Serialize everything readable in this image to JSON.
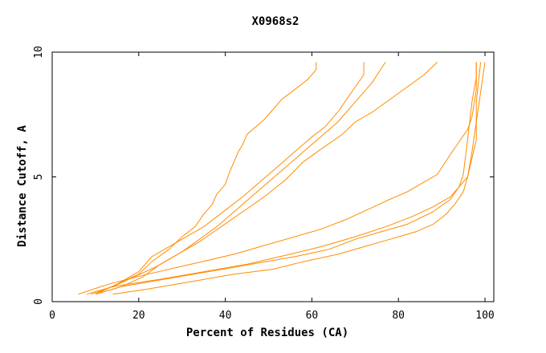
{
  "chart_data": {
    "type": "line",
    "title": "X0968s2",
    "xlabel": "Percent of Residues (CA)",
    "ylabel": "Distance Cutoff, A",
    "xlim": [
      0,
      100
    ],
    "ylim": [
      0,
      10
    ],
    "x_ticks": [
      "0",
      "20",
      "40",
      "60",
      "80",
      "100"
    ],
    "y_ticks": [
      "0",
      "5",
      "10"
    ],
    "grid": false,
    "line_color": "#ff8c00",
    "series": [
      {
        "x": [
          10,
          15,
          20,
          23,
          27,
          30,
          33,
          35,
          37,
          38,
          40,
          41,
          42,
          43,
          44,
          45,
          47,
          49,
          51,
          53,
          56,
          59,
          61,
          61
        ],
        "y": [
          0.3,
          0.7,
          1.1,
          1.6,
          2.1,
          2.6,
          3.0,
          3.5,
          3.9,
          4.3,
          4.7,
          5.2,
          5.6,
          6.0,
          6.3,
          6.7,
          7.0,
          7.3,
          7.7,
          8.1,
          8.5,
          8.9,
          9.3,
          9.6
        ]
      },
      {
        "x": [
          10,
          15,
          20,
          23,
          27,
          31,
          35,
          38,
          41,
          44,
          48,
          52,
          56,
          60,
          63,
          66,
          68,
          70,
          72,
          72
        ],
        "y": [
          0.3,
          0.7,
          1.2,
          1.8,
          2.2,
          2.6,
          3.0,
          3.4,
          3.8,
          4.2,
          4.8,
          5.4,
          6.0,
          6.6,
          7.0,
          7.6,
          8.1,
          8.6,
          9.1,
          9.6
        ]
      },
      {
        "x": [
          10,
          16,
          21,
          25,
          30,
          34,
          38,
          42,
          46,
          50,
          54,
          58,
          62,
          66,
          70,
          74,
          77
        ],
        "y": [
          0.3,
          0.6,
          1.0,
          1.5,
          2.0,
          2.5,
          3.0,
          3.6,
          4.2,
          4.8,
          5.4,
          6.0,
          6.6,
          7.2,
          8.0,
          8.8,
          9.6
        ]
      },
      {
        "x": [
          9,
          14,
          19,
          24,
          29,
          34,
          39,
          44,
          49,
          54,
          58,
          62,
          67,
          70,
          74,
          78,
          82,
          86,
          89
        ],
        "y": [
          0.3,
          0.6,
          1.0,
          1.4,
          1.9,
          2.4,
          3.0,
          3.6,
          4.2,
          4.9,
          5.6,
          6.1,
          6.7,
          7.2,
          7.6,
          8.1,
          8.6,
          9.1,
          9.6
        ]
      },
      {
        "x": [
          6,
          13,
          22,
          32,
          42,
          52,
          62,
          68,
          73,
          78,
          82,
          85,
          89,
          92,
          94,
          96,
          97,
          98,
          98
        ],
        "y": [
          0.3,
          0.7,
          1.1,
          1.5,
          1.9,
          2.4,
          2.9,
          3.3,
          3.7,
          4.1,
          4.4,
          4.7,
          5.1,
          5.9,
          6.4,
          6.9,
          7.4,
          8.5,
          9.6
        ]
      },
      {
        "x": [
          8,
          14,
          25,
          35,
          45,
          55,
          62,
          70,
          77,
          83,
          88,
          92,
          96,
          98,
          98,
          99
        ],
        "y": [
          0.3,
          0.6,
          0.9,
          1.2,
          1.5,
          1.9,
          2.2,
          2.6,
          3.0,
          3.4,
          3.8,
          4.2,
          5.0,
          6.5,
          8.0,
          9.6
        ]
      },
      {
        "x": [
          10,
          16,
          26,
          36,
          46,
          56,
          64,
          70,
          76,
          82,
          88,
          92,
          94,
          95,
          96,
          97,
          98,
          98
        ],
        "y": [
          0.3,
          0.6,
          0.9,
          1.2,
          1.5,
          1.8,
          2.1,
          2.5,
          2.8,
          3.1,
          3.6,
          4.1,
          4.6,
          5.1,
          6.5,
          8.0,
          9.0,
          9.6
        ]
      },
      {
        "x": [
          14,
          22,
          32,
          42,
          51,
          58,
          66,
          72,
          78,
          84,
          88,
          91,
          93,
          95,
          96,
          97,
          98,
          99,
          100
        ],
        "y": [
          0.3,
          0.5,
          0.8,
          1.1,
          1.3,
          1.6,
          1.9,
          2.2,
          2.5,
          2.8,
          3.1,
          3.5,
          3.9,
          4.4,
          5.0,
          6.0,
          7.2,
          8.4,
          9.6
        ]
      }
    ]
  }
}
